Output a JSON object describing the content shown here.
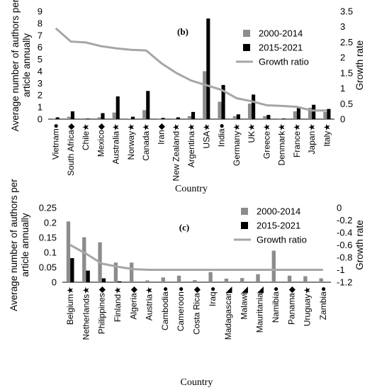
{
  "colors": {
    "series1": "#8c8c8c",
    "series2": "#000000",
    "growth": "#a6a6a6"
  },
  "chart_data": [
    {
      "type": "bar",
      "panel_label": "(b)",
      "xlabel": "Country",
      "ylabel_lines": [
        "Average number of authors per",
        "article annually"
      ],
      "y2label": "Growth rate",
      "ylim": [
        0,
        9
      ],
      "yticks": [
        0,
        1,
        2,
        3,
        4,
        5,
        6,
        7,
        8,
        9
      ],
      "y2lim": [
        0,
        3.5
      ],
      "y2ticks": [
        "0",
        "0.5",
        "1",
        "1.5",
        "2",
        "2.5",
        "3",
        "3.5"
      ],
      "legend_position": "top-right",
      "categories": [
        "Vietnam●",
        "South Africa◆",
        "Chile★",
        "Mexico◆",
        "Australia★",
        "Norway★",
        "Canada★",
        "Iran◆",
        "New Zealand★",
        "Argentina★",
        "USA★",
        "India●",
        "Germany★",
        "UK★",
        "Greece★",
        "Denmark★",
        "France★",
        "Japan★",
        "Italy★"
      ],
      "series": [
        {
          "name": "2000-2014",
          "values": [
            0.05,
            0.2,
            0.0,
            0.15,
            0.55,
            0.05,
            0.75,
            0.05,
            0.05,
            0.25,
            4.0,
            1.45,
            0.25,
            1.3,
            0.25,
            0.05,
            0.65,
            0.95,
            0.6
          ]
        },
        {
          "name": "2015-2021",
          "values": [
            0.15,
            0.65,
            0.05,
            0.5,
            1.9,
            0.2,
            2.35,
            0.1,
            0.15,
            0.6,
            8.4,
            2.85,
            0.4,
            2.05,
            0.35,
            0.05,
            0.95,
            1.2,
            0.85
          ]
        }
      ],
      "growth": {
        "name": "Growth ratio",
        "values": [
          2.95,
          2.52,
          2.49,
          2.37,
          2.3,
          2.25,
          2.23,
          1.82,
          1.5,
          1.25,
          1.1,
          0.95,
          0.68,
          0.58,
          0.45,
          0.43,
          0.4,
          0.28,
          0.28
        ]
      }
    },
    {
      "type": "bar",
      "panel_label": "(c)",
      "xlabel": "Country",
      "ylabel_lines": [
        "Average number of authors per",
        "article annually"
      ],
      "y2label": "Growth rate",
      "ylim": [
        0,
        0.25
      ],
      "yticks": [
        "0",
        "0.05",
        "0.1",
        "0.15",
        "0.2",
        "0.25"
      ],
      "y2lim": [
        -1.2,
        0
      ],
      "y2ticks": [
        "-1.2",
        "-1",
        "-0.8",
        "-0.6",
        "-0.4",
        "-0.2",
        "0"
      ],
      "legend_position": "top-right",
      "categories": [
        "Belgium★",
        "Netherlands★",
        "Philippines◆",
        "Finland★",
        "Algeria◆",
        "Austria★",
        "Cambodia●",
        "Cameroon●",
        "Costa Rica◆",
        "Iraq●",
        "Madagascar◣",
        "Malawi◣",
        "Mauritania◣",
        "Namibia●",
        "Panama◆",
        "Uruguay★",
        "Zambia●"
      ],
      "series": [
        {
          "name": "2000-2014",
          "values": [
            0.204,
            0.151,
            0.134,
            0.066,
            0.066,
            0.006,
            0.016,
            0.022,
            0.007,
            0.034,
            0.012,
            0.014,
            0.027,
            0.106,
            0.022,
            0.02,
            0.013
          ]
        },
        {
          "name": "2015-2021",
          "values": [
            0.081,
            0.039,
            0.013,
            0.003,
            0.0,
            0.0,
            0.0,
            0.0,
            0.0,
            0.0,
            0.0,
            0.0,
            0.0,
            0.0,
            0.0,
            0.0,
            0.0
          ]
        }
      ],
      "growth": {
        "name": "Growth ratio",
        "values": [
          -0.6,
          -0.74,
          -0.9,
          -0.95,
          -0.99,
          -1.0,
          -1.0,
          -1.0,
          -1.0,
          -1.0,
          -1.0,
          -1.0,
          -1.0,
          -1.0,
          -1.0,
          -1.0,
          -1.0
        ]
      }
    }
  ]
}
